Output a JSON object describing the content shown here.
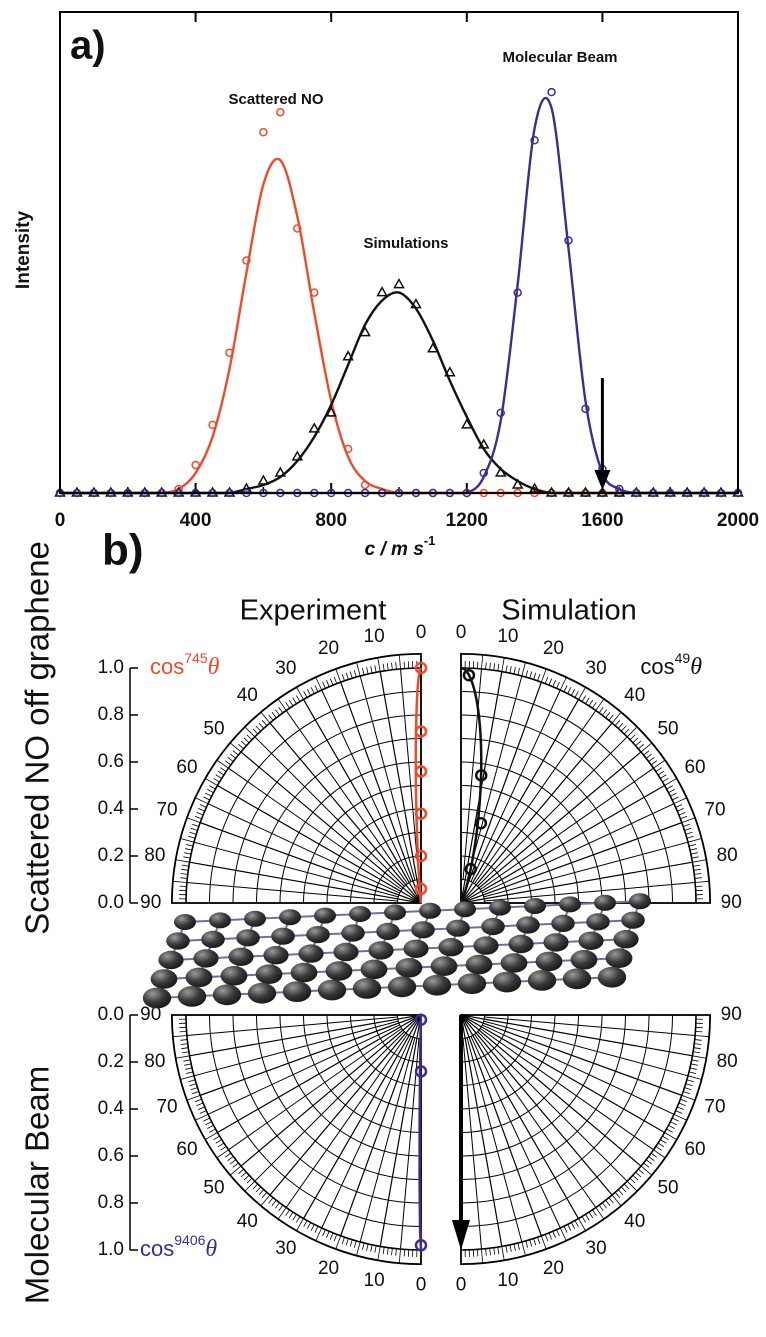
{
  "chart_data": [
    {
      "type": "line",
      "panel_label": "a)",
      "ylabel": "Intensity",
      "xlabel": "c / m s",
      "xlabel_sup": "-1",
      "xlim": [
        0,
        2000
      ],
      "xticks": [
        0,
        400,
        800,
        1200,
        1600,
        2000
      ],
      "ylim": [
        0,
        1.2
      ],
      "arrow_x": 1600,
      "x": [
        0,
        50,
        100,
        150,
        200,
        250,
        300,
        350,
        400,
        450,
        500,
        550,
        600,
        650,
        700,
        750,
        800,
        850,
        900,
        950,
        1000,
        1050,
        1100,
        1150,
        1200,
        1250,
        1300,
        1350,
        1400,
        1450,
        1500,
        1550,
        1600,
        1650,
        1700,
        1750,
        1800,
        1850,
        1900,
        1950,
        2000
      ],
      "series": [
        {
          "name": "Scattered NO",
          "color": "#f04a28",
          "marker": "circle",
          "values": [
            0,
            0,
            0,
            0,
            0,
            0,
            0,
            0.01,
            0.05,
            0.14,
            0.31,
            0.55,
            0.77,
            0.83,
            0.69,
            0.45,
            0.23,
            0.09,
            0.03,
            0.01,
            0,
            0,
            0,
            0,
            0,
            0,
            0,
            0,
            0,
            0,
            0,
            0,
            0,
            0,
            0,
            0,
            0,
            0,
            0,
            0,
            0
          ],
          "markers": [
            0,
            0,
            0,
            0,
            0,
            0,
            0,
            0.01,
            0.07,
            0.17,
            0.35,
            0.58,
            0.9,
            0.95,
            0.66,
            0.5,
            0.2,
            0.11,
            0.02,
            0,
            0,
            0,
            0,
            0,
            0,
            0,
            0,
            0,
            0,
            0,
            0,
            0,
            0,
            0,
            0,
            0,
            0,
            0,
            0,
            0,
            0
          ]
        },
        {
          "name": "Simulations",
          "color": "#111111",
          "marker": "triangle",
          "values": [
            0,
            0,
            0,
            0,
            0,
            0,
            0,
            0,
            0,
            0,
            0,
            0.01,
            0.02,
            0.04,
            0.08,
            0.14,
            0.22,
            0.32,
            0.42,
            0.48,
            0.5,
            0.46,
            0.38,
            0.28,
            0.19,
            0.11,
            0.06,
            0.03,
            0.01,
            0,
            0,
            0,
            0,
            0,
            0,
            0,
            0,
            0,
            0,
            0,
            0
          ],
          "markers": [
            0,
            0,
            0,
            0,
            0,
            0,
            0,
            0,
            0,
            0,
            0,
            0.01,
            0.03,
            0.05,
            0.09,
            0.16,
            0.2,
            0.34,
            0.4,
            0.5,
            0.52,
            0.47,
            0.36,
            0.3,
            0.17,
            0.12,
            0.05,
            0.02,
            0.01,
            0,
            0,
            0,
            0,
            0,
            0,
            0,
            0,
            0,
            0,
            0,
            0
          ]
        },
        {
          "name": "Molecular Beam",
          "color": "#3f2c93",
          "marker": "circle",
          "values": [
            0,
            0,
            0,
            0,
            0,
            0,
            0,
            0,
            0,
            0,
            0,
            0,
            0,
            0,
            0,
            0,
            0,
            0,
            0,
            0,
            0,
            0,
            0,
            0,
            0,
            0.04,
            0.18,
            0.52,
            0.91,
            0.96,
            0.61,
            0.23,
            0.05,
            0.01,
            0,
            0,
            0,
            0,
            0,
            0,
            0
          ],
          "markers": [
            0,
            0,
            0,
            0,
            0,
            0,
            0,
            0,
            0,
            0,
            0,
            0,
            0,
            0,
            0,
            0,
            0,
            0,
            0,
            0,
            0,
            0,
            0,
            0,
            0,
            0.05,
            0.2,
            0.5,
            0.88,
            1.0,
            0.63,
            0.21,
            0.06,
            0.01,
            0,
            0,
            0,
            0,
            0,
            0,
            0
          ]
        }
      ]
    },
    {
      "type": "polar",
      "panel_label": "b)",
      "column": "Experiment",
      "row": "Scattered NO off graphene",
      "color": "#f04a28",
      "label": "cos",
      "exponent": 745,
      "label_var": "θ",
      "rlim": [
        0,
        1
      ],
      "rticks": [
        {
          "value": 0,
          "label": "0.0"
        },
        0.2,
        0.4,
        0.6,
        0.8,
        {
          "value": 1,
          "label": "1.0"
        }
      ],
      "thetaticks": [
        0,
        10,
        20,
        30,
        40,
        50,
        60,
        70,
        80,
        90
      ],
      "theta": [
        0,
        0,
        0,
        0,
        0,
        0
      ],
      "r": [
        1.0,
        0.73,
        0.56,
        0.38,
        0.2,
        0.06
      ]
    },
    {
      "type": "polar",
      "column": "Simulation",
      "color": "#111111",
      "label": "cos",
      "exponent": 49,
      "label_var": "θ",
      "rlim": [
        0,
        1
      ],
      "thetaticks": [
        0,
        10,
        20,
        30,
        40,
        50,
        60,
        70,
        80,
        90
      ],
      "theta": [
        2,
        9,
        14,
        16
      ],
      "r": [
        0.97,
        0.55,
        0.35,
        0.15
      ]
    },
    {
      "type": "polar",
      "row": "Molecular Beam",
      "color": "#3f2c93",
      "label": "cos",
      "exponent": 9406,
      "label_var": "θ",
      "rlim": [
        0,
        1
      ],
      "rticks": [
        {
          "value": 0,
          "label": "0.0"
        },
        0.2,
        0.4,
        0.6,
        0.8,
        {
          "value": 1,
          "label": "1.0"
        }
      ],
      "thetaticks": [
        0,
        10,
        20,
        30,
        40,
        50,
        60,
        70,
        80,
        90
      ],
      "theta": [
        0,
        0,
        0
      ],
      "r": [
        0.02,
        0.24,
        0.98
      ]
    },
    {
      "type": "polar",
      "rlim": [
        0,
        1
      ],
      "thetaticks": [
        0,
        10,
        20,
        30,
        40,
        50,
        60,
        70,
        80,
        90
      ]
    }
  ]
}
